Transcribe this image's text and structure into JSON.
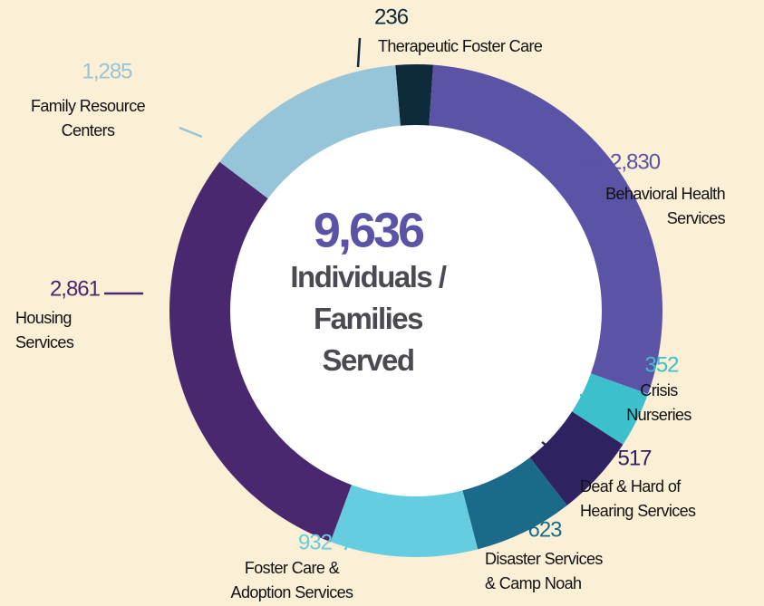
{
  "chart_data": {
    "type": "donut",
    "categories": [
      "Therapeutic Foster Care",
      "Behavioral Health Services",
      "Crisis Nurseries",
      "Deaf & Hard of Hearing Services",
      "Disaster Services & Camp Noah",
      "Foster Care & Adoption Services",
      "Housing Services",
      "Family Resource Centers"
    ],
    "values": [
      236,
      2830,
      352,
      517,
      623,
      932,
      2861,
      1285
    ],
    "value_labels": [
      "236",
      "2,830",
      "352",
      "517",
      "623",
      "932",
      "2,861",
      "1,285"
    ],
    "colors": [
      "#0d2b3a",
      "#5b53a6",
      "#3cc0cc",
      "#2e2260",
      "#1b6a8a",
      "#66cce0",
      "#4a2870",
      "#96c4d8"
    ],
    "total": {
      "value": 9636,
      "label": "9,636"
    },
    "center_text": "Individuals / Families Served"
  }
}
